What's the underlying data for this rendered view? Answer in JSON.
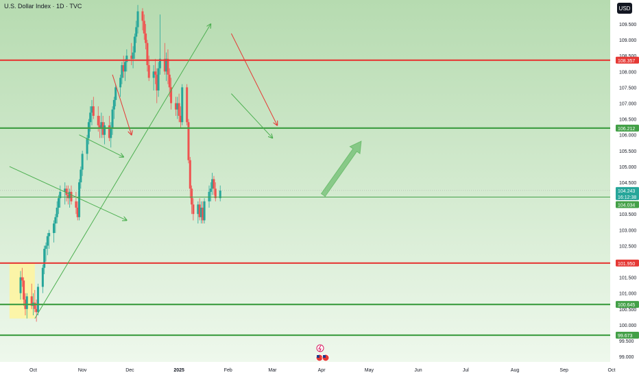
{
  "header": {
    "title": "U.S. Dollar Index · 1D · TVC",
    "currency": "USD"
  },
  "colors": {
    "bg_top": "#b6dbb0",
    "bg_bottom": "#eef8ec",
    "up": "#26a69a",
    "down": "#ef5350",
    "red_line": "#e53935",
    "green_line": "#43a047",
    "trend": "#4caf50",
    "price_badge": "#26a69a",
    "axis_text": "#131722",
    "highlight_box": "#fff59d"
  },
  "chart_data": {
    "type": "candlestick",
    "symbol": "U.S. Dollar Index",
    "interval": "1D",
    "source": "TVC",
    "currency": "USD",
    "y_ticks": [
      "99.000",
      "99.500",
      "100.000",
      "100.500",
      "101.000",
      "101.500",
      "102.000",
      "102.500",
      "103.000",
      "103.500",
      "104.000",
      "104.500",
      "105.000",
      "105.500",
      "106.000",
      "106.500",
      "107.000",
      "107.500",
      "108.000",
      "108.500",
      "109.000",
      "109.500"
    ],
    "x_ticks": [
      "Oct",
      "Nov",
      "Dec",
      "2025",
      "Feb",
      "Mar",
      "Apr",
      "May",
      "Jun",
      "Jul",
      "Aug",
      "Sep",
      "Oct"
    ],
    "levels": [
      {
        "label": "108.357",
        "value": 108.357,
        "kind": "resistance"
      },
      {
        "label": "106.212",
        "value": 106.212,
        "kind": "support"
      },
      {
        "label": "101.950",
        "value": 101.95,
        "kind": "resistance"
      },
      {
        "label": "100.645",
        "value": 100.645,
        "kind": "support"
      },
      {
        "label": "99.673",
        "value": 99.673,
        "kind": "support"
      }
    ],
    "last_price": {
      "label": "104.243",
      "value": 104.243,
      "countdown": "16:12:38"
    },
    "reference_price": {
      "label": "104.034",
      "value": 104.034
    },
    "candles_from": "2024-09-23",
    "candles": [
      [
        101.0,
        101.7,
        100.8,
        101.5
      ],
      [
        101.5,
        101.8,
        101.2,
        101.4
      ],
      [
        101.4,
        101.5,
        100.6,
        100.8
      ],
      [
        100.8,
        101.0,
        100.3,
        100.5
      ],
      [
        100.5,
        101.0,
        100.2,
        100.9
      ],
      [
        100.9,
        101.3,
        100.5,
        100.6
      ],
      [
        100.6,
        101.0,
        100.3,
        100.7
      ],
      [
        100.7,
        101.1,
        100.4,
        100.5
      ],
      [
        100.5,
        100.8,
        100.1,
        100.4
      ],
      [
        100.4,
        101.3,
        100.3,
        101.2
      ],
      [
        101.2,
        101.9,
        101.0,
        101.8
      ],
      [
        101.8,
        102.5,
        101.6,
        102.4
      ],
      [
        102.4,
        102.6,
        102.0,
        102.5
      ],
      [
        102.5,
        102.9,
        102.2,
        102.8
      ],
      [
        102.8,
        103.0,
        102.4,
        102.9
      ],
      [
        102.9,
        103.3,
        102.6,
        103.2
      ],
      [
        103.2,
        103.5,
        102.9,
        103.4
      ],
      [
        103.4,
        103.9,
        103.2,
        103.7
      ],
      [
        103.7,
        104.1,
        103.5,
        104.0
      ],
      [
        104.0,
        104.4,
        103.7,
        104.2
      ],
      [
        104.2,
        104.5,
        103.8,
        104.3
      ],
      [
        104.3,
        104.4,
        103.9,
        104.1
      ],
      [
        104.1,
        104.4,
        103.8,
        104.0
      ],
      [
        104.0,
        104.3,
        103.7,
        104.2
      ],
      [
        104.2,
        104.4,
        103.8,
        103.9
      ],
      [
        103.9,
        104.2,
        103.5,
        103.7
      ],
      [
        103.7,
        103.9,
        103.3,
        103.4
      ],
      [
        103.4,
        104.6,
        103.3,
        104.5
      ],
      [
        104.5,
        105.0,
        104.3,
        104.9
      ],
      [
        104.9,
        105.5,
        104.7,
        105.4
      ],
      [
        105.4,
        106.0,
        105.2,
        105.9
      ],
      [
        105.9,
        106.5,
        105.7,
        106.4
      ],
      [
        106.4,
        106.9,
        106.1,
        106.7
      ],
      [
        106.7,
        107.1,
        106.3,
        106.9
      ],
      [
        106.9,
        107.2,
        106.5,
        106.6
      ],
      [
        106.6,
        106.9,
        106.1,
        106.3
      ],
      [
        106.3,
        106.6,
        105.9,
        106.2
      ],
      [
        106.2,
        106.7,
        105.9,
        106.4
      ],
      [
        106.4,
        106.6,
        105.9,
        106.0
      ],
      [
        106.0,
        106.4,
        105.7,
        106.3
      ],
      [
        106.3,
        106.6,
        105.8,
        105.9
      ],
      [
        105.9,
        106.4,
        105.6,
        106.2
      ],
      [
        106.2,
        106.9,
        106.0,
        106.8
      ],
      [
        106.8,
        107.2,
        106.5,
        107.1
      ],
      [
        107.1,
        107.6,
        106.9,
        107.5
      ],
      [
        107.5,
        107.9,
        107.2,
        107.8
      ],
      [
        107.8,
        108.3,
        107.6,
        108.2
      ],
      [
        108.2,
        108.5,
        107.8,
        108.0
      ],
      [
        108.0,
        108.4,
        107.7,
        108.3
      ],
      [
        108.3,
        108.7,
        108.0,
        108.5
      ],
      [
        108.5,
        108.9,
        108.2,
        108.4
      ],
      [
        108.4,
        108.8,
        108.1,
        108.6
      ],
      [
        108.6,
        109.2,
        108.4,
        109.1
      ],
      [
        109.1,
        109.6,
        108.9,
        109.4
      ],
      [
        109.4,
        110.1,
        109.2,
        109.9
      ],
      [
        109.9,
        110.0,
        109.3,
        109.6
      ],
      [
        109.6,
        109.8,
        109.0,
        109.2
      ],
      [
        109.2,
        109.5,
        108.7,
        108.9
      ],
      [
        108.9,
        109.0,
        108.0,
        108.2
      ],
      [
        108.2,
        108.5,
        107.7,
        107.8
      ],
      [
        107.8,
        108.2,
        107.4,
        108.0
      ],
      [
        108.0,
        108.4,
        107.6,
        107.9
      ],
      [
        107.9,
        108.1,
        107.0,
        107.4
      ],
      [
        107.4,
        108.3,
        107.2,
        108.1
      ],
      [
        108.1,
        109.8,
        107.9,
        108.4
      ],
      [
        108.4,
        108.9,
        107.9,
        108.0
      ],
      [
        108.0,
        108.6,
        107.7,
        108.4
      ],
      [
        108.4,
        108.7,
        107.6,
        107.9
      ],
      [
        107.9,
        108.1,
        107.2,
        107.5
      ],
      [
        107.5,
        107.8,
        106.8,
        107.0
      ],
      [
        107.0,
        107.2,
        106.6,
        106.8
      ],
      [
        106.8,
        107.2,
        106.5,
        107.0
      ],
      [
        107.0,
        107.3,
        106.4,
        106.6
      ],
      [
        106.6,
        106.9,
        106.2,
        106.4
      ],
      [
        106.4,
        107.6,
        106.3,
        107.5
      ],
      [
        107.5,
        107.6,
        106.3,
        106.4
      ],
      [
        106.4,
        106.5,
        105.1,
        105.2
      ],
      [
        105.2,
        105.3,
        104.0,
        104.3
      ],
      [
        104.3,
        104.4,
        103.5,
        103.8
      ],
      [
        103.8,
        104.0,
        103.3,
        103.5
      ],
      [
        103.5,
        103.9,
        103.2,
        103.8
      ],
      [
        103.8,
        104.0,
        103.3,
        103.4
      ],
      [
        103.4,
        103.9,
        103.2,
        103.7
      ],
      [
        103.7,
        103.9,
        103.2,
        103.3
      ],
      [
        103.3,
        104.0,
        103.2,
        103.9
      ],
      [
        103.9,
        104.4,
        103.7,
        104.2
      ],
      [
        104.2,
        104.5,
        103.9,
        104.3
      ],
      [
        104.3,
        104.8,
        104.1,
        104.6
      ],
      [
        104.6,
        104.7,
        104.1,
        104.3
      ],
      [
        104.3,
        104.5,
        103.9,
        104.0
      ],
      [
        104.0,
        104.4,
        103.9,
        104.243
      ]
    ],
    "trendlines": [
      {
        "from": [
          "2024-10-02",
          100.2
        ],
        "to": [
          "2025-01-21",
          109.5
        ],
        "arrow": true
      },
      {
        "from": [
          "2024-09-16",
          105.0
        ],
        "to": [
          "2024-11-29",
          103.3
        ],
        "arrow": true
      },
      {
        "from": [
          "2024-10-30",
          106.0
        ],
        "to": [
          "2024-11-27",
          105.3
        ],
        "arrow": true
      },
      {
        "from": [
          "2024-11-20",
          107.9
        ],
        "to": [
          "2024-12-02",
          106.0
        ],
        "arrow": true,
        "color": "red"
      },
      {
        "from": [
          "2025-02-03",
          107.3
        ],
        "to": [
          "2025-03-01",
          105.9
        ],
        "arrow": true
      },
      {
        "from": [
          "2025-02-03",
          109.2
        ],
        "to": [
          "2025-03-04",
          106.3
        ],
        "arrow": true,
        "color": "red"
      }
    ],
    "projection": {
      "from": [
        "2025-04-02",
        104.1
      ],
      "to": [
        "2025-04-26",
        105.8
      ]
    },
    "highlight_box": {
      "from": "2024-09-16",
      "to": "2024-10-02",
      "top": 101.95,
      "bottom": 100.2
    },
    "ylim": [
      98.8,
      110.3
    ]
  }
}
